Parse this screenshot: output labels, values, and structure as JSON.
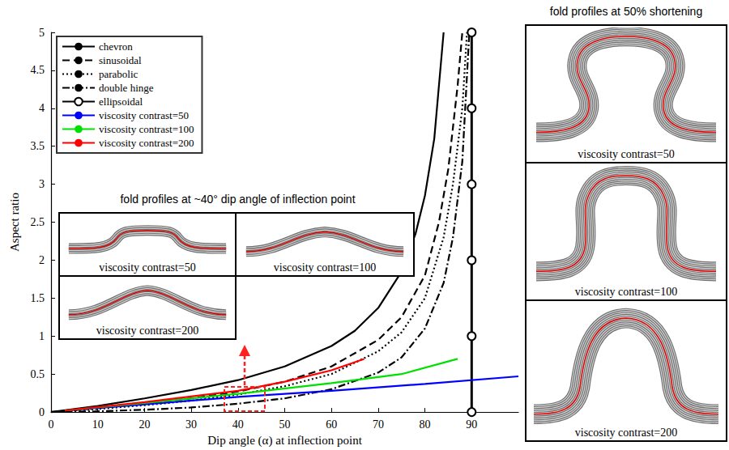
{
  "chart_data": {
    "type": "line",
    "x_label": "Dip angle (α) at inflection point",
    "y_label": "Aspect ratio",
    "xlim": [
      0,
      100
    ],
    "xticks": [
      0,
      10,
      20,
      30,
      40,
      50,
      60,
      70,
      80,
      90
    ],
    "ylim": [
      0,
      5
    ],
    "yticks": [
      0,
      0.5,
      1,
      1.5,
      2,
      2.5,
      3,
      3.5,
      4,
      4.5,
      5
    ],
    "grid": false,
    "legend": "top-left",
    "series": [
      {
        "name": "chevron",
        "color": "#000000",
        "line_style": "solid",
        "x": [
          0,
          10,
          20,
          30,
          40,
          50,
          60,
          65,
          70,
          75,
          78,
          80,
          82,
          84
        ],
        "values": [
          0,
          0.08,
          0.18,
          0.29,
          0.42,
          0.6,
          0.87,
          1.07,
          1.37,
          1.85,
          2.35,
          2.85,
          3.6,
          5
        ]
      },
      {
        "name": "sinusoidal",
        "color": "#000000",
        "line_style": "dashed",
        "x": [
          0,
          10,
          20,
          30,
          40,
          50,
          60,
          70,
          75,
          80,
          83,
          85,
          87,
          88
        ],
        "values": [
          0,
          0.05,
          0.11,
          0.18,
          0.27,
          0.4,
          0.6,
          0.95,
          1.25,
          1.8,
          2.5,
          3.2,
          4.3,
          5
        ]
      },
      {
        "name": "parabolic",
        "color": "#000000",
        "line_style": "dotted",
        "x": [
          0,
          10,
          20,
          30,
          40,
          50,
          60,
          70,
          75,
          80,
          84,
          86,
          88,
          89
        ],
        "values": [
          0,
          0.04,
          0.09,
          0.15,
          0.23,
          0.34,
          0.5,
          0.8,
          1.05,
          1.5,
          2.3,
          3,
          4,
          5
        ]
      },
      {
        "name": "double hinge",
        "color": "#000000",
        "line_style": "dashdot",
        "x": [
          0,
          10,
          20,
          30,
          40,
          50,
          60,
          70,
          75,
          80,
          84,
          86,
          88,
          89.5
        ],
        "values": [
          0,
          0.01,
          0.03,
          0.06,
          0.11,
          0.18,
          0.3,
          0.52,
          0.72,
          1.1,
          1.7,
          2.3,
          3.3,
          5
        ]
      },
      {
        "name": "ellipsoidal",
        "color": "#000000",
        "line_style": "solid",
        "marker": "circle",
        "x": [
          90,
          90,
          90,
          90,
          90,
          90
        ],
        "values": [
          0,
          1,
          2,
          3,
          4,
          5
        ]
      },
      {
        "name": "viscosity contrast=50",
        "color": "#0000ff",
        "line_style": "solid",
        "x": [
          3,
          20,
          40,
          60,
          80,
          100
        ],
        "values": [
          0.02,
          0.1,
          0.2,
          0.28,
          0.37,
          0.47
        ]
      },
      {
        "name": "viscosity contrast=100",
        "color": "#00e000",
        "line_style": "solid",
        "x": [
          3,
          20,
          40,
          60,
          75,
          87
        ],
        "values": [
          0.02,
          0.12,
          0.24,
          0.38,
          0.5,
          0.7
        ]
      },
      {
        "name": "viscosity contrast=200",
        "color": "#ff0000",
        "line_style": "solid",
        "x": [
          3,
          20,
          40,
          50,
          60,
          67
        ],
        "values": [
          0.02,
          0.13,
          0.28,
          0.4,
          0.55,
          0.7
        ]
      }
    ],
    "insets": [
      {
        "title": "fold profiles at ~40° dip angle of inflection point",
        "panels": [
          "viscosity contrast=50",
          "viscosity contrast=100",
          "viscosity contrast=200"
        ]
      },
      {
        "title": "fold profiles at 50% shortening",
        "panels": [
          "viscosity contrast=50",
          "viscosity contrast=100",
          "viscosity contrast=200"
        ]
      }
    ]
  }
}
